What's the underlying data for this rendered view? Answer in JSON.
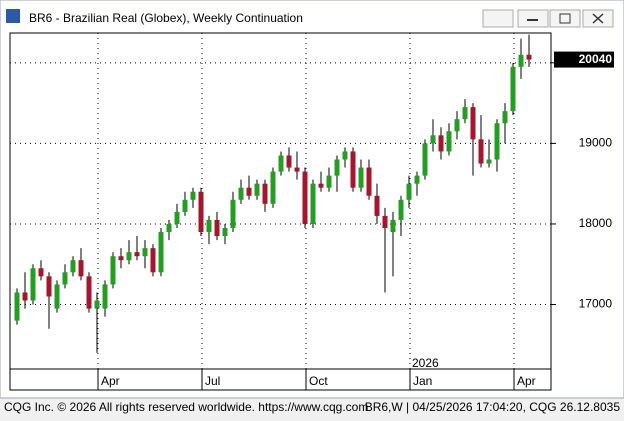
{
  "window": {
    "title": "BR6 - Brazilian Real (Globex), Weekly Continuation"
  },
  "chart_data": {
    "type": "candlestick",
    "categories": [
      null,
      null,
      null,
      null,
      null,
      null,
      null,
      null,
      null,
      null,
      null,
      null,
      null,
      null,
      null,
      null,
      null,
      null,
      null,
      null,
      null,
      null,
      null,
      null,
      null,
      null,
      null,
      null,
      null,
      null,
      null,
      null,
      null,
      null,
      null,
      null,
      null,
      null,
      null,
      null,
      null,
      null,
      null,
      null,
      null,
      null,
      null,
      null,
      null,
      null,
      null,
      null,
      null,
      null,
      null,
      null,
      null,
      null,
      null,
      null,
      null,
      null,
      null,
      null,
      null
    ],
    "open": [
      16800,
      17150,
      17050,
      17450,
      17350,
      16950,
      17250,
      17400,
      17550,
      17350,
      16950,
      16950,
      17250,
      17600,
      17550,
      17650,
      17600,
      17700,
      17400,
      17900,
      18000,
      18150,
      18300,
      18400,
      17900,
      18050,
      17850,
      17950,
      18300,
      18450,
      18350,
      18500,
      18250,
      18650,
      18850,
      18700,
      18650,
      18000,
      18500,
      18450,
      18600,
      18800,
      18900,
      18450,
      18700,
      18350,
      18100,
      17900,
      18050,
      18300,
      18500,
      18600,
      19000,
      19100,
      18900,
      19150,
      19300,
      19450,
      19050,
      18750,
      18800,
      19250,
      19400,
      19950,
      20100
    ],
    "high": [
      17200,
      17400,
      17500,
      17550,
      17400,
      17300,
      17500,
      17600,
      17700,
      17400,
      17150,
      17300,
      17650,
      17700,
      17800,
      17850,
      17800,
      17750,
      17950,
      18050,
      18250,
      18400,
      18450,
      18450,
      18100,
      18150,
      18000,
      18400,
      18550,
      18600,
      18550,
      18550,
      18700,
      18900,
      18950,
      18900,
      18700,
      18550,
      18650,
      18700,
      18850,
      18950,
      18950,
      18800,
      18800,
      18500,
      18200,
      18150,
      18350,
      18600,
      18650,
      19050,
      19300,
      19200,
      19250,
      19400,
      19550,
      19500,
      19350,
      19050,
      19300,
      19500,
      20000,
      20300,
      20350
    ],
    "low": [
      16750,
      16950,
      17000,
      17300,
      16700,
      16900,
      17200,
      17350,
      17300,
      16900,
      16400,
      16850,
      17200,
      17450,
      17500,
      17550,
      17450,
      17350,
      17350,
      17800,
      17950,
      18100,
      18200,
      17850,
      17750,
      17800,
      17750,
      17900,
      18250,
      18300,
      18300,
      18150,
      18200,
      18600,
      18650,
      18550,
      17950,
      17950,
      18400,
      18400,
      18400,
      18700,
      18400,
      18400,
      18300,
      18000,
      17150,
      17350,
      17850,
      18200,
      18350,
      18550,
      18900,
      18800,
      18850,
      19050,
      19250,
      18600,
      18700,
      18700,
      18650,
      19000,
      19350,
      19800,
      19950
    ],
    "close": [
      17150,
      17050,
      17450,
      17350,
      17100,
      17250,
      17400,
      17550,
      17350,
      16950,
      17050,
      17250,
      17600,
      17550,
      17650,
      17600,
      17700,
      17400,
      17900,
      18000,
      18150,
      18300,
      18400,
      17900,
      18050,
      17850,
      17950,
      18300,
      18450,
      18350,
      18500,
      18250,
      18650,
      18850,
      18700,
      18650,
      18000,
      18500,
      18450,
      18600,
      18800,
      18900,
      18450,
      18700,
      18350,
      18100,
      17950,
      18050,
      18300,
      18500,
      18600,
      19000,
      19100,
      18900,
      19150,
      19300,
      19450,
      19050,
      18750,
      18800,
      19250,
      19400,
      19950,
      20100,
      20040
    ],
    "up_color": "#1fa01f",
    "down_color": "#a8142c",
    "ylim": [
      16200,
      20370
    ],
    "yticks": [
      17000,
      18000,
      19000,
      20000
    ],
    "grid": true,
    "xticks": [
      {
        "value": 10,
        "label": "Apr"
      },
      {
        "value": 23,
        "label": "Jul"
      },
      {
        "value": 36,
        "label": "Oct"
      },
      {
        "value": 49,
        "label": "Jan"
      },
      {
        "value": 62,
        "label": "Apr"
      }
    ],
    "year_label": {
      "value": 49,
      "label": "2026"
    }
  },
  "footer": {
    "left": "CQG Inc. © 2026 All rights reserved worldwide. https://www.cqg.com",
    "right": "BR6,W | 04/25/2026 17:04:20, CQG 26.12.8035"
  }
}
